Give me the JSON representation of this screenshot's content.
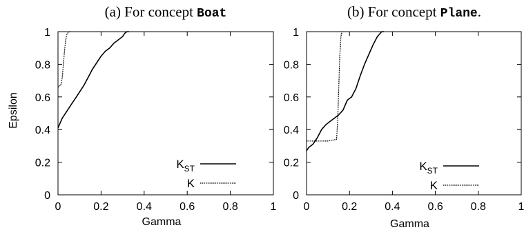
{
  "chart_data": [
    {
      "type": "line",
      "title": {
        "prefix": "(a) For concept ",
        "concept": "Boat",
        "suffix": ""
      },
      "xlabel": "Gamma",
      "ylabel": "Epsilon",
      "xlim": [
        0,
        1
      ],
      "ylim": [
        0,
        1
      ],
      "xticks": [
        "0",
        "0.2",
        "0.4",
        "0.6",
        "0.8",
        "1"
      ],
      "yticks": [
        "0",
        "0.2",
        "0.4",
        "0.6",
        "0.8",
        "1"
      ],
      "grid": false,
      "legend_position": "bottom-right",
      "series": [
        {
          "name": "K",
          "subscript": "ST",
          "style": "solid",
          "color": "#000000",
          "x": [
            0,
            0.01,
            0.02,
            0.04,
            0.06,
            0.08,
            0.1,
            0.12,
            0.14,
            0.16,
            0.18,
            0.2,
            0.22,
            0.24,
            0.26,
            0.28,
            0.3,
            0.31,
            0.32,
            0.33
          ],
          "y": [
            0.41,
            0.44,
            0.47,
            0.51,
            0.55,
            0.59,
            0.63,
            0.67,
            0.72,
            0.77,
            0.81,
            0.85,
            0.88,
            0.9,
            0.93,
            0.95,
            0.97,
            0.99,
            1.0,
            1.0
          ]
        },
        {
          "name": "K",
          "subscript": "",
          "style": "dotted",
          "color": "#000000",
          "x": [
            0,
            0.01,
            0.015,
            0.02,
            0.025,
            0.03,
            0.035,
            0.04,
            0.045,
            0.05,
            0.055,
            0.06
          ],
          "y": [
            0.66,
            0.67,
            0.68,
            0.72,
            0.8,
            0.88,
            0.94,
            0.98,
            0.99,
            1.0,
            1.0,
            1.0
          ]
        }
      ]
    },
    {
      "type": "line",
      "title": {
        "prefix": "(b) For concept ",
        "concept": "Plane",
        "suffix": "."
      },
      "xlabel": "Gamma",
      "ylabel": "",
      "xlim": [
        0,
        1
      ],
      "ylim": [
        0,
        1
      ],
      "xticks": [
        "0",
        "0.2",
        "0.4",
        "0.6",
        "0.8",
        "1"
      ],
      "yticks": [
        "0",
        "0.2",
        "0.4",
        "0.6",
        "0.8",
        "1"
      ],
      "grid": false,
      "legend_position": "bottom-right",
      "series": [
        {
          "name": "K",
          "subscript": "ST",
          "style": "solid",
          "color": "#000000",
          "x": [
            0,
            0.01,
            0.02,
            0.03,
            0.05,
            0.07,
            0.09,
            0.11,
            0.13,
            0.15,
            0.17,
            0.19,
            0.21,
            0.23,
            0.25,
            0.27,
            0.29,
            0.31,
            0.33,
            0.35,
            0.36
          ],
          "y": [
            0.27,
            0.29,
            0.3,
            0.31,
            0.35,
            0.4,
            0.43,
            0.45,
            0.47,
            0.49,
            0.52,
            0.58,
            0.6,
            0.65,
            0.73,
            0.8,
            0.86,
            0.92,
            0.97,
            1.0,
            1.0
          ]
        },
        {
          "name": "K",
          "subscript": "",
          "style": "dotted",
          "color": "#000000",
          "x": [
            0,
            0.05,
            0.1,
            0.14,
            0.145,
            0.15,
            0.155,
            0.16,
            0.165,
            0.17
          ],
          "y": [
            0.33,
            0.33,
            0.33,
            0.34,
            0.45,
            0.65,
            0.85,
            0.97,
            1.0,
            1.0
          ]
        }
      ]
    }
  ]
}
